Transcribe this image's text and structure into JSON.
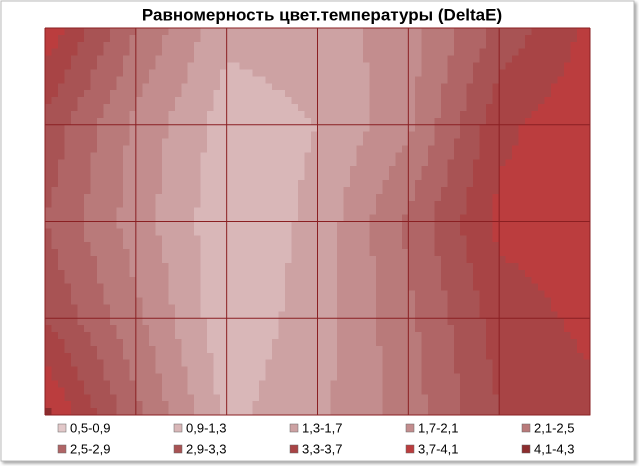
{
  "chart_data": {
    "type": "contour",
    "title": "Равномерность цвет.температуры (DeltaE)",
    "values": [
      [
        4.0,
        2.5,
        1.4,
        1.5,
        1.9,
        3.0,
        3.8
      ],
      [
        3.2,
        2.0,
        1.1,
        1.3,
        2.0,
        3.6,
        4.0
      ],
      [
        2.9,
        1.9,
        1.0,
        1.4,
        2.6,
        3.8,
        3.9
      ],
      [
        3.3,
        2.2,
        1.0,
        1.5,
        2.4,
        3.5,
        3.8
      ],
      [
        4.2,
        2.6,
        1.2,
        1.6,
        2.3,
        3.3,
        3.6
      ]
    ],
    "grid": true,
    "grid_color": "#8a1f22",
    "bands": [
      {
        "label": "0,5-0,9",
        "from": 0.5,
        "to": 0.9,
        "color": "#e2c8c9"
      },
      {
        "label": "0,9-1,3",
        "from": 0.9,
        "to": 1.3,
        "color": "#d9b7b8"
      },
      {
        "label": "1,3-1,7",
        "from": 1.3,
        "to": 1.7,
        "color": "#cda2a3"
      },
      {
        "label": "1,7-2,1",
        "from": 1.7,
        "to": 2.1,
        "color": "#c38d8e"
      },
      {
        "label": "2,1-2,5",
        "from": 2.1,
        "to": 2.5,
        "color": "#b97a7a"
      },
      {
        "label": "2,5-2,9",
        "from": 2.5,
        "to": 2.9,
        "color": "#b06566"
      },
      {
        "label": "2,9-3,3",
        "from": 2.9,
        "to": 3.3,
        "color": "#a85354"
      },
      {
        "label": "3,3-3,7",
        "from": 3.3,
        "to": 3.7,
        "color": "#a84445"
      },
      {
        "label": "3,7-4,1",
        "from": 3.7,
        "to": 4.1,
        "color": "#bb3d3e"
      },
      {
        "label": "4,1-4,3",
        "from": 4.1,
        "to": 4.3,
        "color": "#8c2d2e"
      }
    ]
  }
}
